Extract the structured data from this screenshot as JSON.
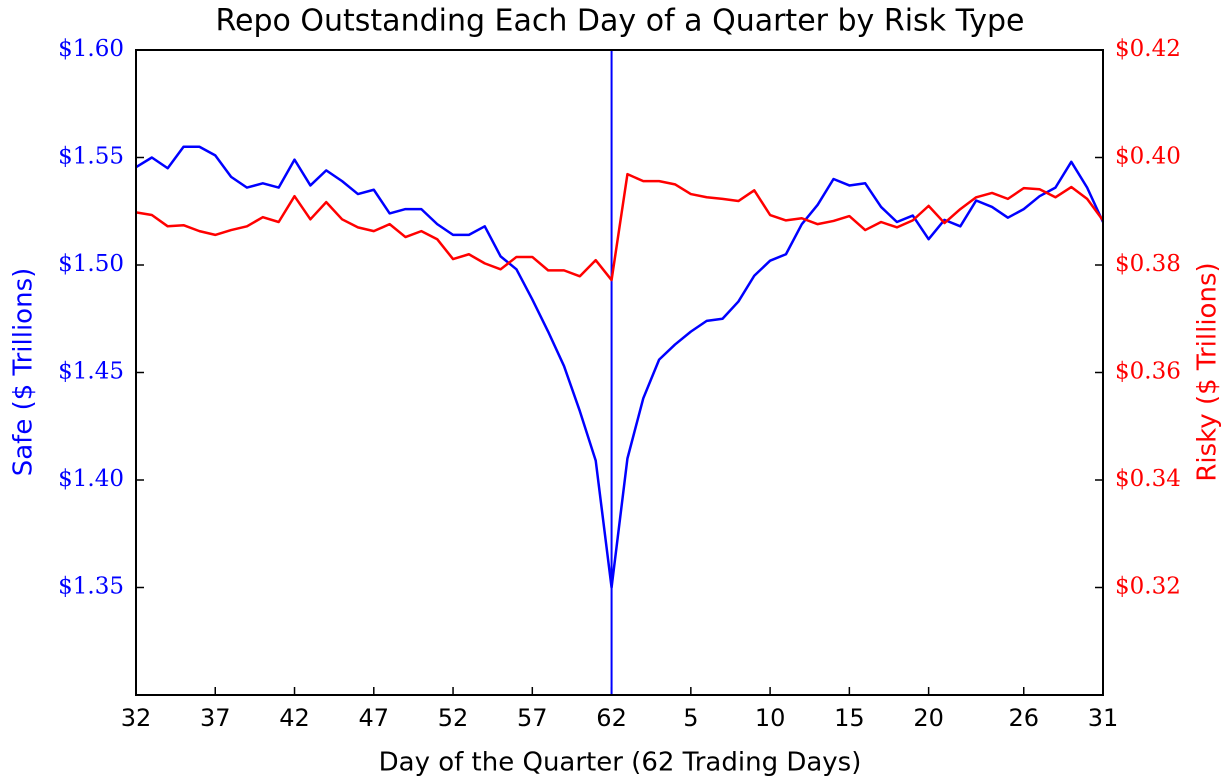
{
  "chart_data": {
    "type": "line",
    "title": "Repo Outstanding Each Day of a Quarter by Risk Type",
    "x_label": "Day of the Quarter (62 Trading Days)",
    "y_label": "Safe ($ Trillions)",
    "y2_label": "Risky ($ Trillions)",
    "categories": [
      "32",
      null,
      null,
      null,
      null,
      "37",
      null,
      null,
      null,
      null,
      "42",
      null,
      null,
      null,
      null,
      "47",
      null,
      null,
      null,
      null,
      "52",
      null,
      null,
      null,
      null,
      "57",
      null,
      null,
      null,
      null,
      "62",
      null,
      null,
      null,
      null,
      "5",
      null,
      null,
      null,
      null,
      "10",
      null,
      null,
      null,
      null,
      "15",
      null,
      null,
      null,
      null,
      "20",
      null,
      null,
      null,
      null,
      null,
      "26",
      null,
      null,
      null,
      null,
      "31"
    ],
    "ylim": [
      1.3,
      1.6
    ],
    "yticks": [
      {
        "value": 1.35,
        "label": "$1.35"
      },
      {
        "value": 1.4,
        "label": "$1.40"
      },
      {
        "value": 1.45,
        "label": "$1.45"
      },
      {
        "value": 1.5,
        "label": "$1.50"
      },
      {
        "value": 1.55,
        "label": "$1.55"
      },
      {
        "value": 1.6,
        "label": "$1.60"
      }
    ],
    "y2lim": [
      0.3,
      0.42
    ],
    "y2ticks": [
      {
        "value": 0.32,
        "label": "$0.32"
      },
      {
        "value": 0.34,
        "label": "$0.34"
      },
      {
        "value": 0.36,
        "label": "$0.36"
      },
      {
        "value": 0.38,
        "label": "$0.38"
      },
      {
        "value": 0.4,
        "label": "$0.40"
      },
      {
        "value": 0.42,
        "label": "$0.42"
      }
    ],
    "series": [
      {
        "color": "#0000ff",
        "axis": "y",
        "values": [
          1.5455,
          1.55,
          1.545,
          1.555,
          1.555,
          1.551,
          1.541,
          1.536,
          1.538,
          1.536,
          1.549,
          1.537,
          1.544,
          1.539,
          1.533,
          1.535,
          1.524,
          1.526,
          1.526,
          1.519,
          1.514,
          1.514,
          1.518,
          1.504,
          1.498,
          1.484,
          1.469,
          1.453,
          1.432,
          1.409,
          1.35,
          1.41,
          1.438,
          1.456,
          1.463,
          1.469,
          1.474,
          1.475,
          1.483,
          1.495,
          1.502,
          1.505,
          1.519,
          1.528,
          1.54,
          1.537,
          1.538,
          1.527,
          1.52,
          1.523,
          1.512,
          1.521,
          1.518,
          1.53,
          1.527,
          1.522,
          1.526,
          1.532,
          1.536,
          1.548,
          1.536,
          1.52
        ]
      },
      {
        "color": "#ff0000",
        "axis": "y2",
        "values": [
          0.3898,
          0.3893,
          0.3872,
          0.3874,
          0.3863,
          0.3856,
          0.3865,
          0.3872,
          0.3889,
          0.388,
          0.3928,
          0.3885,
          0.3917,
          0.3885,
          0.387,
          0.3863,
          0.3876,
          0.3852,
          0.3863,
          0.3848,
          0.3811,
          0.382,
          0.3803,
          0.3792,
          0.3815,
          0.3815,
          0.379,
          0.379,
          0.3779,
          0.3809,
          0.3772,
          0.3969,
          0.3956,
          0.3956,
          0.395,
          0.3932,
          0.3926,
          0.3923,
          0.3919,
          0.3939,
          0.3893,
          0.3883,
          0.3887,
          0.3876,
          0.3882,
          0.3891,
          0.3865,
          0.388,
          0.387,
          0.3883,
          0.391,
          0.3878,
          0.3904,
          0.3926,
          0.3934,
          0.3923,
          0.3943,
          0.3941,
          0.3926,
          0.3945,
          0.3923,
          0.3883
        ]
      }
    ]
  }
}
